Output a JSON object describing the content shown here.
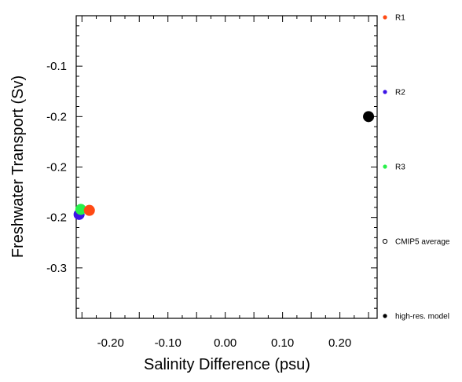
{
  "chart_data": {
    "type": "scatter",
    "xlabel": "Salinity Difference (psu)",
    "ylabel": "Freshwater Transport (Sv)",
    "xlim": [
      -0.26,
      0.265
    ],
    "ylim": [
      -0.35,
      -0.05
    ],
    "x_ticks": [
      {
        "value": -0.2,
        "label": "-0.20"
      },
      {
        "value": -0.1,
        "label": "-0.10"
      },
      {
        "value": 0.0,
        "label": "0.00"
      },
      {
        "value": 0.1,
        "label": "0.10"
      },
      {
        "value": 0.2,
        "label": "0.20"
      }
    ],
    "y_ticks": [
      {
        "value": -0.1,
        "label": "-0.1"
      },
      {
        "value": -0.15,
        "label": "-0.2"
      },
      {
        "value": -0.2,
        "label": "-0.2"
      },
      {
        "value": -0.25,
        "label": "-0.2"
      },
      {
        "value": -0.3,
        "label": "-0.3"
      }
    ],
    "series": [
      {
        "name": "R1",
        "color": "#ff4a14",
        "marker": "filled-circle",
        "points": [
          {
            "x": -0.237,
            "y": -0.243
          }
        ]
      },
      {
        "name": "R2",
        "color": "#3c14e6",
        "marker": "filled-circle",
        "points": [
          {
            "x": -0.255,
            "y": -0.247
          }
        ]
      },
      {
        "name": "R3",
        "color": "#28f04a",
        "marker": "filled-circle",
        "points": [
          {
            "x": -0.252,
            "y": -0.242
          }
        ]
      },
      {
        "name": "CMIP5 average",
        "color": "#000000",
        "marker": "open-circle",
        "points": []
      },
      {
        "name": "high-res. model",
        "color": "#000000",
        "marker": "filled-circle",
        "points": [
          {
            "x": 0.25,
            "y": -0.15
          }
        ]
      }
    ],
    "legend_position": "right",
    "grid": false
  }
}
